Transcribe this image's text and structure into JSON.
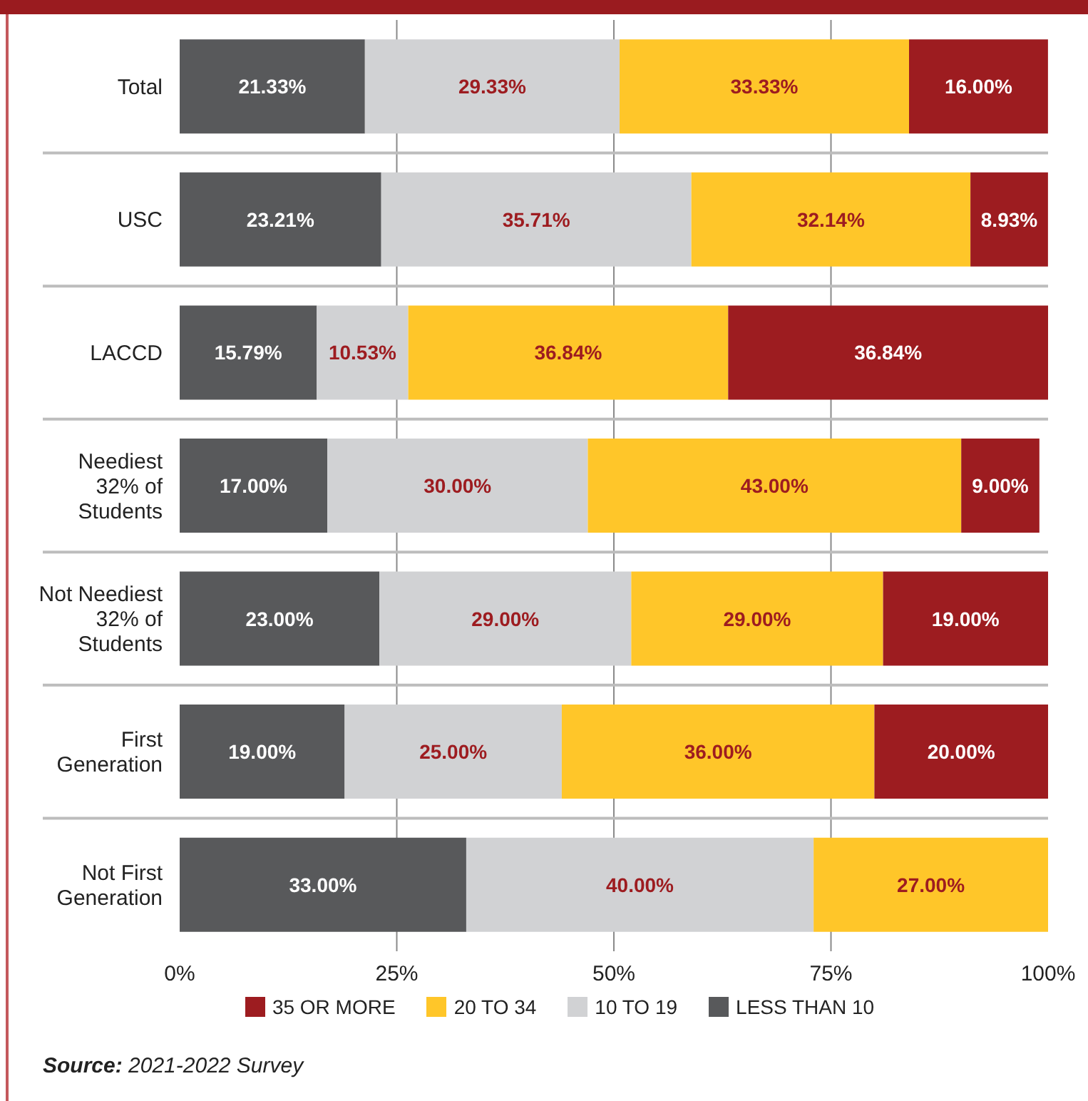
{
  "chart_data": {
    "type": "bar",
    "orientation": "horizontal",
    "stacked": true,
    "categories": [
      "Total",
      "USC",
      "LACCD",
      "Neediest 32% of Students",
      "Not Neediest 32% of Students",
      "First Generation",
      "Not First Generation"
    ],
    "series": [
      {
        "name": "LESS THAN 10",
        "color": "#58595b",
        "values": [
          21.33,
          23.21,
          15.79,
          17,
          23,
          19,
          33
        ],
        "value_labels": [
          "21.33%",
          "23.21%",
          "15.79%",
          "17.00%",
          "23.00%",
          "19.00%",
          "33.00%"
        ]
      },
      {
        "name": "10 TO 19",
        "color": "#d1d2d4",
        "values": [
          29.33,
          35.71,
          10.53,
          30,
          29,
          25,
          40
        ],
        "value_labels": [
          "29.33%",
          "35.71%",
          "10.53%",
          "30.00%",
          "29.00%",
          "25.00%",
          "40.00%"
        ]
      },
      {
        "name": "20 TO 34",
        "color": "#ffc629",
        "values": [
          33.33,
          32.14,
          36.84,
          43,
          29,
          36,
          27
        ],
        "value_labels": [
          "33.33%",
          "32.14%",
          "36.84%",
          "43.00%",
          "29.00%",
          "36.00%",
          "27.00%"
        ]
      },
      {
        "name": "35 OR MORE",
        "color": "#9d1c20",
        "values": [
          16,
          8.93,
          36.84,
          9,
          19,
          20,
          null
        ],
        "value_labels": [
          "16.00%",
          "8.93%",
          "36.84%",
          "9.00%",
          "19.00%",
          "20.00%",
          null
        ]
      }
    ],
    "xlim": [
      0,
      100
    ],
    "xticks": [
      {
        "value": 0,
        "label": "0%"
      },
      {
        "value": 25,
        "label": "25%"
      },
      {
        "value": 50,
        "label": "50%"
      },
      {
        "value": 75,
        "label": "75%"
      },
      {
        "value": 100,
        "label": "100%"
      }
    ],
    "grid": true,
    "legend": "bottom",
    "annotations": [
      "Source: 2021-2022 Survey"
    ]
  }
}
